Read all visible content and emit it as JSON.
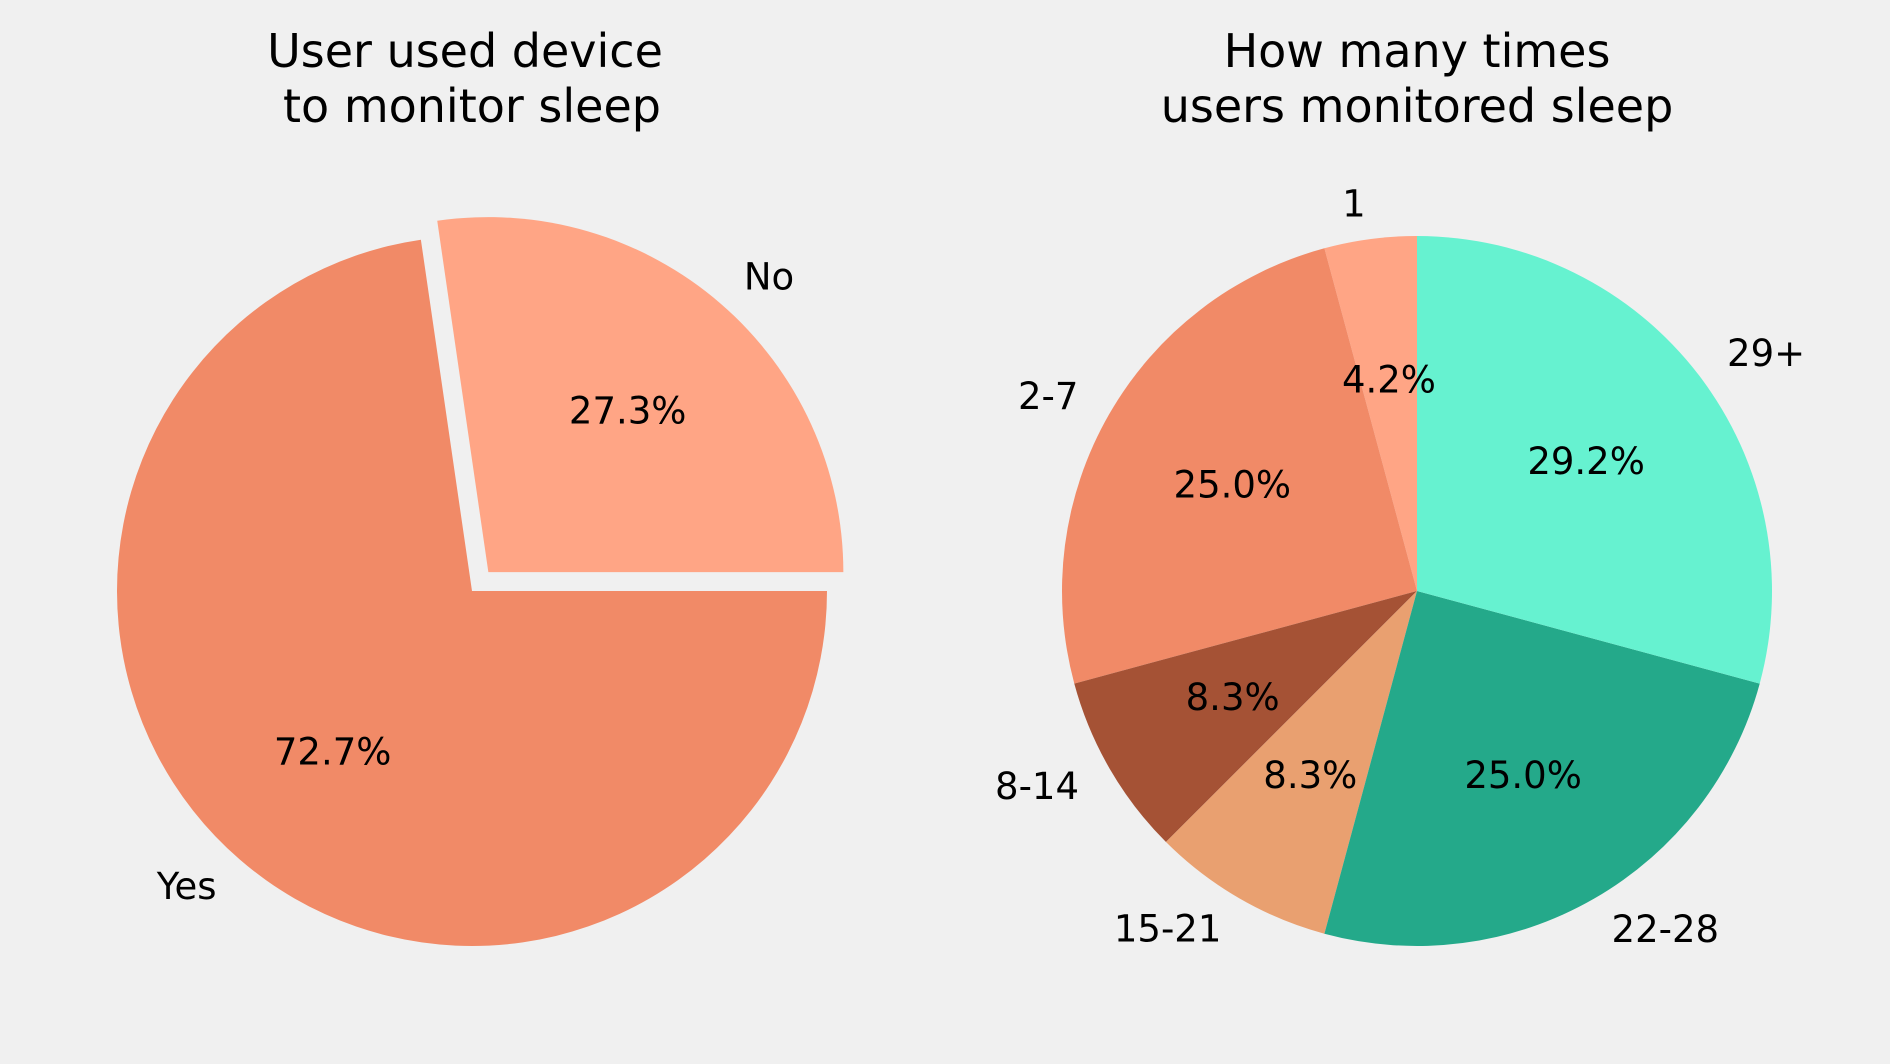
{
  "chart_data": [
    {
      "type": "pie",
      "title_lines": [
        "User used device",
        "to monitor sleep"
      ],
      "slices": [
        {
          "label": "No",
          "value": 27.3,
          "pct_label": "27.3%",
          "color": "#FFA585",
          "exploded": true
        },
        {
          "label": "Yes",
          "value": 72.7,
          "pct_label": "72.7%",
          "color": "#F18A67",
          "exploded": false
        }
      ],
      "start_angle_deg": 0,
      "direction": "counterclockwise",
      "legend": "none"
    },
    {
      "type": "pie",
      "title_lines": [
        "How many times",
        "users monitored sleep"
      ],
      "slices": [
        {
          "label": "1",
          "value": 4.2,
          "pct_label": "4.2%",
          "color": "#FFA585"
        },
        {
          "label": "2-7",
          "value": 25.0,
          "pct_label": "25.0%",
          "color": "#F18A67"
        },
        {
          "label": "8-14",
          "value": 8.3,
          "pct_label": "8.3%",
          "color": "#A55235"
        },
        {
          "label": "15-21",
          "value": 8.3,
          "pct_label": "8.3%",
          "color": "#E9A070"
        },
        {
          "label": "22-28",
          "value": 25.0,
          "pct_label": "25.0%",
          "color": "#24A98A"
        },
        {
          "label": "29+",
          "value": 29.2,
          "pct_label": "29.2%",
          "color": "#66F2D0"
        }
      ],
      "start_angle_deg": 90,
      "direction": "counterclockwise",
      "legend": "none"
    }
  ]
}
